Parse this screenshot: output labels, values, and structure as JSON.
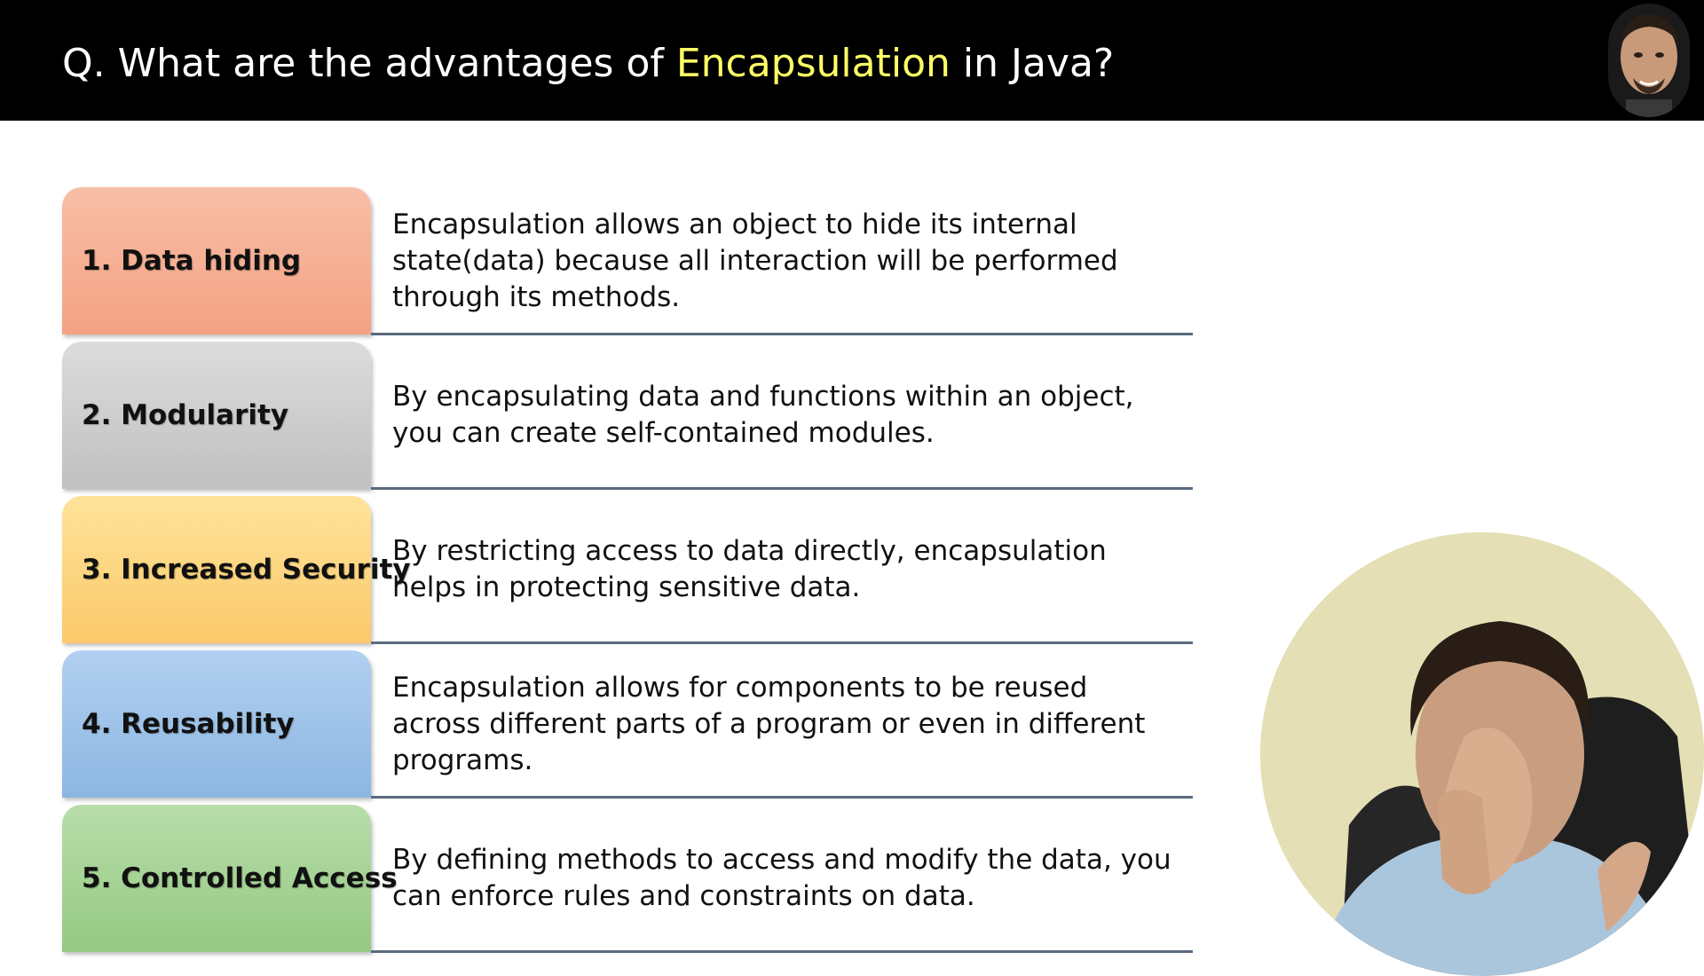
{
  "header": {
    "title_prefix": "Q. What are the advantages of ",
    "title_highlight": "Encapsulation",
    "title_suffix": " in Java?",
    "highlight_color": "#ffff66"
  },
  "advantages": [
    {
      "label": "1. Data hiding",
      "description": "Encapsulation allows an object to hide its internal state(data) because all interaction will be performed through its methods.",
      "color": "#f6b096"
    },
    {
      "label": "2. Modularity",
      "description": "By encapsulating data and functions within an object, you can create self-contained modules.",
      "color": "#cfcfcf"
    },
    {
      "label": "3. Increased Security",
      "description": "By restricting access to data directly, encapsulation helps in protecting sensitive data.",
      "color": "#fdd57f"
    },
    {
      "label": "4. Reusability",
      "description": "Encapsulation allows for components to be reused across different parts of a program or even in different programs.",
      "color": "#9fc3e9"
    },
    {
      "label": "5. Controlled Access",
      "description": "By defining methods to access and modify the data, you can enforce rules and constraints on data.",
      "color": "#a8d595"
    }
  ]
}
